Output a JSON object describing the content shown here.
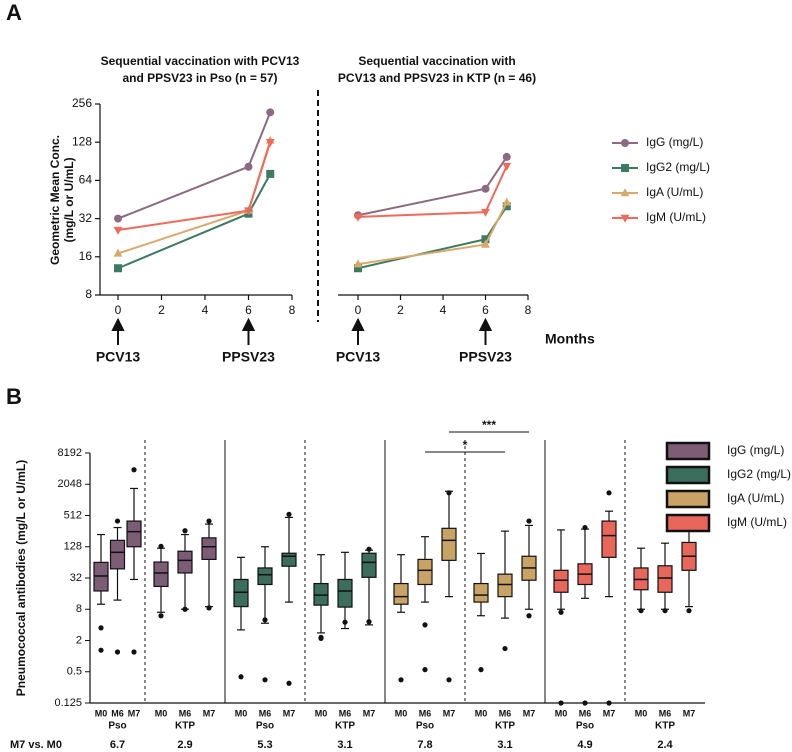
{
  "panel_labels": [
    "A",
    "B"
  ],
  "chart_data": [
    {
      "type": "line",
      "title": [
        "Sequential vaccination with PCV13",
        "and PPSV23 in Pso (n = 57)"
      ],
      "ylabel": [
        "Geometric Mean Conc.",
        "(mg/L or U/mL)"
      ],
      "x": [
        0,
        6,
        7
      ],
      "xlim": [
        0,
        8
      ],
      "xticks": [
        0,
        2,
        4,
        6,
        8
      ],
      "ylim": [
        8,
        256
      ],
      "yticks": [
        8,
        16,
        32,
        64,
        128,
        256
      ],
      "ylog": true,
      "annotations": [
        {
          "x": 0,
          "text": "PCV13"
        },
        {
          "x": 6,
          "text": "PPSV23"
        }
      ],
      "series": [
        {
          "name": "IgG (mg/L)",
          "color": "#8b6a82",
          "marker": "circle",
          "values": [
            32,
            82,
            220
          ]
        },
        {
          "name": "IgG2 (mg/L)",
          "color": "#3d7a62",
          "marker": "square",
          "values": [
            13,
            35,
            72
          ]
        },
        {
          "name": "IgA (U/mL)",
          "color": "#d9a96a",
          "marker": "triangle-up",
          "values": [
            17,
            37,
            132
          ]
        },
        {
          "name": "IgM (U/mL)",
          "color": "#ef6a5a",
          "marker": "triangle-down",
          "values": [
            26,
            37,
            128
          ]
        }
      ]
    },
    {
      "type": "line",
      "title": [
        "Sequential vaccination with",
        "PCV13 and PPSV23 in KTP (n = 46)"
      ],
      "xlabel": "Months",
      "x": [
        0,
        6,
        7
      ],
      "xlim": [
        0,
        8
      ],
      "xticks": [
        0,
        2,
        4,
        6,
        8
      ],
      "ylim": [
        8,
        256
      ],
      "ylog": true,
      "annotations": [
        {
          "x": 0,
          "text": "PCV13"
        },
        {
          "x": 6,
          "text": "PPSV23"
        }
      ],
      "series": [
        {
          "color": "#8b6a82",
          "marker": "circle",
          "values": [
            34,
            55,
            98
          ]
        },
        {
          "color": "#3d7a62",
          "marker": "square",
          "values": [
            13,
            22,
            40
          ]
        },
        {
          "color": "#d9a96a",
          "marker": "triangle-up",
          "values": [
            14,
            20,
            43
          ]
        },
        {
          "color": "#ef6a5a",
          "marker": "triangle-down",
          "values": [
            33,
            36,
            83
          ]
        }
      ]
    },
    {
      "type": "box",
      "ylabel": "Pneumococcal antibodies (mg/L or U/mL)",
      "ratio_title": "M7 vs. M0",
      "ylim": [
        0.125,
        8192
      ],
      "yticks": [
        0.125,
        0.5,
        2,
        8,
        32,
        128,
        512,
        2048,
        8192
      ],
      "ylog": true,
      "series": [
        {
          "name": "IgG (mg/L)",
          "color": "#7d5c75",
          "groups": [
            {
              "name": "Pso",
              "ratio": 6.7,
              "boxes": [
                {
                  "label": "M0",
                  "whisker_low": 10,
                  "q1": 18,
                  "median": 35,
                  "q3": 64,
                  "whisker_high": 220,
                  "outliers": [
                    3.5,
                    1.3
                  ]
                },
                {
                  "label": "M6",
                  "whisker_low": 12,
                  "q1": 48,
                  "median": 100,
                  "q3": 170,
                  "whisker_high": 300,
                  "outliers": [
                    400,
                    1.2
                  ]
                },
                {
                  "label": "M7",
                  "whisker_low": 30,
                  "q1": 128,
                  "median": 250,
                  "q3": 400,
                  "whisker_high": 1700,
                  "outliers": [
                    3900,
                    1.2
                  ]
                }
              ]
            },
            {
              "name": "KTP",
              "ratio": 2.9,
              "boxes": [
                {
                  "label": "M0",
                  "whisker_low": 7,
                  "q1": 22,
                  "median": 40,
                  "q3": 65,
                  "whisker_high": 120,
                  "outliers": [
                    130,
                    6
                  ]
                },
                {
                  "label": "M6",
                  "whisker_low": 8,
                  "q1": 40,
                  "median": 70,
                  "q3": 105,
                  "whisker_high": 220,
                  "outliers": [
                    260,
                    8
                  ]
                },
                {
                  "label": "M7",
                  "whisker_low": 9,
                  "q1": 73,
                  "median": 128,
                  "q3": 190,
                  "whisker_high": 350,
                  "outliers": [
                    400,
                    8.5
                  ]
                }
              ]
            }
          ]
        },
        {
          "name": "IgG2 (mg/L)",
          "color": "#3b6e5c",
          "groups": [
            {
              "name": "Pso",
              "ratio": 5.3,
              "boxes": [
                {
                  "label": "M0",
                  "whisker_low": 3.2,
                  "q1": 9,
                  "median": 17,
                  "q3": 30,
                  "whisker_high": 80,
                  "outliers": [
                    0.4
                  ]
                },
                {
                  "label": "M6",
                  "whisker_low": 4.3,
                  "q1": 24,
                  "median": 37,
                  "q3": 50,
                  "whisker_high": 128,
                  "outliers": [
                    5,
                    0.35
                  ]
                },
                {
                  "label": "M7",
                  "whisker_low": 11,
                  "q1": 54,
                  "median": 84,
                  "q3": 96,
                  "whisker_high": 470,
                  "outliers": [
                    540,
                    0.3
                  ]
                }
              ]
            },
            {
              "name": "KTP",
              "ratio": 3.1,
              "boxes": [
                {
                  "label": "M0",
                  "whisker_low": 2.8,
                  "q1": 9.6,
                  "median": 15,
                  "q3": 25,
                  "whisker_high": 90,
                  "outliers": [
                    2.2,
                    2.3
                  ]
                },
                {
                  "label": "M6",
                  "whisker_low": 3.4,
                  "q1": 8.8,
                  "median": 18,
                  "q3": 30,
                  "whisker_high": 100,
                  "outliers": [
                    4.5
                  ]
                },
                {
                  "label": "M7",
                  "whisker_low": 4,
                  "q1": 33,
                  "median": 64,
                  "q3": 96,
                  "whisker_high": 110,
                  "outliers": [
                    115,
                    4.6
                  ]
                }
              ]
            }
          ]
        },
        {
          "name": "IgA (U/mL)",
          "color": "#c9a265",
          "significance": [
            "***",
            "*"
          ],
          "groups": [
            {
              "name": "Pso",
              "ratio": 7.8,
              "boxes": [
                {
                  "label": "M0",
                  "whisker_low": 7,
                  "q1": 10,
                  "median": 14,
                  "q3": 25,
                  "whisker_high": 90,
                  "outliers": [
                    0.35
                  ]
                },
                {
                  "label": "M6",
                  "whisker_low": 11,
                  "q1": 24,
                  "median": 45,
                  "q3": 73,
                  "whisker_high": 200,
                  "outliers": [
                    4,
                    0.55
                  ]
                },
                {
                  "label": "M7",
                  "whisker_low": 14,
                  "q1": 70,
                  "median": 170,
                  "q3": 290,
                  "whisker_high": 1500,
                  "outliers": [
                    1400,
                    0.35
                  ]
                }
              ]
            },
            {
              "name": "KTP",
              "ratio": 3.1,
              "boxes": [
                {
                  "label": "M0",
                  "whisker_low": 6,
                  "q1": 11,
                  "median": 15,
                  "q3": 25,
                  "whisker_high": 95,
                  "outliers": [
                    0.55
                  ]
                },
                {
                  "label": "M6",
                  "whisker_low": 5.4,
                  "q1": 14,
                  "median": 24,
                  "q3": 38,
                  "whisker_high": 256,
                  "outliers": [
                    1.4
                  ]
                },
                {
                  "label": "M7",
                  "whisker_low": 8,
                  "q1": 29,
                  "median": 50,
                  "q3": 84,
                  "whisker_high": 330,
                  "outliers": [
                    400,
                    6
                  ]
                }
              ]
            }
          ]
        },
        {
          "name": "IgM (U/mL)",
          "color": "#e8665a",
          "groups": [
            {
              "name": "Pso",
              "ratio": 4.9,
              "boxes": [
                {
                  "label": "M0",
                  "whisker_low": 8,
                  "q1": 17,
                  "median": 29,
                  "q3": 45,
                  "whisker_high": 270,
                  "outliers": [
                    7,
                    0.125
                  ]
                },
                {
                  "label": "M6",
                  "whisker_low": 13,
                  "q1": 24,
                  "median": 38,
                  "q3": 60,
                  "whisker_high": 280,
                  "outliers": [
                    300,
                    0.125
                  ]
                },
                {
                  "label": "M7",
                  "whisker_low": 14,
                  "q1": 80,
                  "median": 210,
                  "q3": 400,
                  "whisker_high": 620,
                  "outliers": [
                    1400,
                    0.125
                  ]
                }
              ]
            },
            {
              "name": "KTP",
              "ratio": 2.4,
              "boxes": [
                {
                  "label": "M0",
                  "whisker_low": 8,
                  "q1": 19,
                  "median": 30,
                  "q3": 50,
                  "whisker_high": 120,
                  "outliers": [
                    7.5
                  ]
                },
                {
                  "label": "M6",
                  "whisker_low": 8,
                  "q1": 17,
                  "median": 32,
                  "q3": 55,
                  "whisker_high": 150,
                  "outliers": [
                    7.5
                  ]
                },
                {
                  "label": "M7",
                  "whisker_low": 9,
                  "q1": 45,
                  "median": 84,
                  "q3": 155,
                  "whisker_high": 400,
                  "outliers": [
                    7.5
                  ]
                }
              ]
            }
          ]
        }
      ]
    }
  ]
}
